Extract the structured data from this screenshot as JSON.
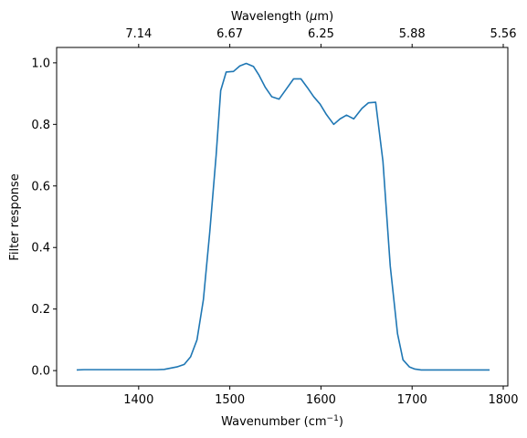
{
  "chart_data": {
    "type": "line",
    "title": "",
    "xlabel_parts": [
      "Wavenumber (cm",
      "−1",
      ")"
    ],
    "ylabel": "Filter response",
    "top_xlabel_parts": [
      "Wavelength (",
      "μ",
      "m)"
    ],
    "xlim": [
      1310,
      1805
    ],
    "ylim": [
      -0.05,
      1.05
    ],
    "xticks": [
      1400,
      1500,
      1600,
      1700,
      1800
    ],
    "xtick_labels": [
      "1400",
      "1500",
      "1600",
      "1700",
      "1800"
    ],
    "yticks": [
      0.0,
      0.2,
      0.4,
      0.6,
      0.8,
      1.0
    ],
    "ytick_labels": [
      "0.0",
      "0.2",
      "0.4",
      "0.6",
      "0.8",
      "1.0"
    ],
    "top_xticks": [
      {
        "position": 1400,
        "label": "7.14"
      },
      {
        "position": 1500,
        "label": "6.67"
      },
      {
        "position": 1600,
        "label": "6.25"
      },
      {
        "position": 1700,
        "label": "5.88"
      },
      {
        "position": 1800,
        "label": "5.56"
      }
    ],
    "grid": false,
    "series": [
      {
        "color": "#1f77b4",
        "x": [
          1332,
          1340,
          1360,
          1380,
          1400,
          1420,
          1428,
          1435,
          1442,
          1450,
          1457,
          1464,
          1471,
          1478,
          1485,
          1490,
          1496,
          1504,
          1511,
          1518,
          1526,
          1532,
          1539,
          1546,
          1554,
          1562,
          1570,
          1578,
          1585,
          1592,
          1599,
          1606,
          1614,
          1621,
          1628,
          1636,
          1645,
          1652,
          1660,
          1668,
          1676,
          1684,
          1690,
          1697,
          1703,
          1710,
          1718,
          1725,
          1732,
          1740,
          1748,
          1756,
          1764,
          1772,
          1780,
          1785
        ],
        "y": [
          0.002,
          0.003,
          0.003,
          0.003,
          0.003,
          0.003,
          0.004,
          0.008,
          0.012,
          0.02,
          0.045,
          0.1,
          0.23,
          0.45,
          0.7,
          0.91,
          0.97,
          0.972,
          0.99,
          0.998,
          0.988,
          0.96,
          0.92,
          0.89,
          0.882,
          0.915,
          0.948,
          0.948,
          0.92,
          0.89,
          0.866,
          0.832,
          0.8,
          0.818,
          0.83,
          0.818,
          0.852,
          0.87,
          0.872,
          0.68,
          0.34,
          0.12,
          0.035,
          0.012,
          0.005,
          0.002,
          0.002,
          0.002,
          0.002,
          0.002,
          0.002,
          0.002,
          0.002,
          0.002,
          0.002,
          0.002
        ]
      }
    ]
  }
}
